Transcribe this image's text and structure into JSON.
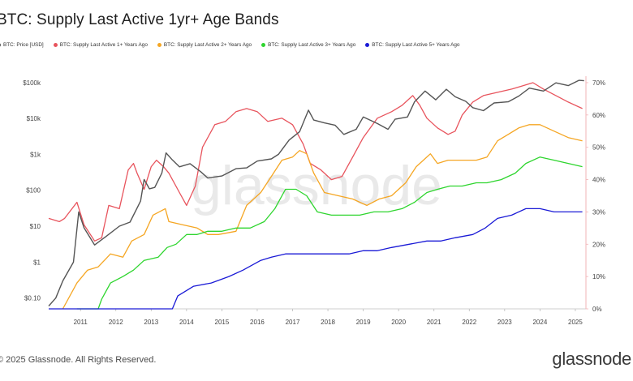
{
  "title": "BTC: Supply Last Active 1yr+ Age Bands",
  "footer": {
    "copyright": "© 2025 Glassnode. All Rights Reserved.",
    "logo": "glassnode"
  },
  "watermark": "glassnode",
  "chart_data": {
    "type": "line",
    "title": "BTC: Supply Last Active 1yr+ Age Bands",
    "x_range": [
      2010.6,
      2025.8
    ],
    "x_ticks": [
      "2011",
      "2012",
      "2013",
      "2014",
      "2015",
      "2016",
      "2017",
      "2018",
      "2019",
      "2020",
      "2021",
      "2022",
      "2023",
      "2024",
      "2025"
    ],
    "y_left": {
      "scale": "log",
      "range": [
        0.05,
        150000
      ],
      "tick_labels": [
        "$0.10",
        "$1",
        "$10",
        "$100",
        "$1k",
        "$10k",
        "$100k"
      ],
      "tick_values": [
        0.1,
        1,
        10,
        100,
        1000,
        10000,
        100000
      ]
    },
    "y_right": {
      "scale": "linear",
      "range": [
        0,
        72
      ],
      "tick_labels": [
        "0%",
        "10%",
        "20%",
        "30%",
        "40%",
        "50%",
        "60%",
        "70%"
      ],
      "tick_values": [
        0,
        10,
        20,
        30,
        40,
        50,
        60,
        70
      ]
    },
    "grid": false,
    "legend_position": "top-left",
    "series": [
      {
        "name": "BTC: Price [USD]",
        "color": "#555555",
        "axis": "left",
        "points": [
          [
            2010.6,
            0.06
          ],
          [
            2010.8,
            0.1
          ],
          [
            2011.0,
            0.3
          ],
          [
            2011.3,
            1
          ],
          [
            2011.45,
            25
          ],
          [
            2011.6,
            9
          ],
          [
            2011.9,
            3
          ],
          [
            2012.2,
            5
          ],
          [
            2012.6,
            10
          ],
          [
            2012.9,
            13
          ],
          [
            2013.2,
            50
          ],
          [
            2013.3,
            200
          ],
          [
            2013.45,
            110
          ],
          [
            2013.6,
            120
          ],
          [
            2013.8,
            300
          ],
          [
            2013.92,
            1100
          ],
          [
            2014.1,
            700
          ],
          [
            2014.3,
            450
          ],
          [
            2014.6,
            550
          ],
          [
            2014.9,
            330
          ],
          [
            2015.1,
            220
          ],
          [
            2015.5,
            250
          ],
          [
            2015.9,
            400
          ],
          [
            2016.2,
            420
          ],
          [
            2016.5,
            650
          ],
          [
            2016.9,
            750
          ],
          [
            2017.1,
            1000
          ],
          [
            2017.4,
            2500
          ],
          [
            2017.7,
            4300
          ],
          [
            2017.95,
            17000
          ],
          [
            2018.1,
            9000
          ],
          [
            2018.4,
            7500
          ],
          [
            2018.7,
            6500
          ],
          [
            2018.95,
            3600
          ],
          [
            2019.3,
            5000
          ],
          [
            2019.5,
            11000
          ],
          [
            2019.9,
            7200
          ],
          [
            2020.2,
            5000
          ],
          [
            2020.4,
            9500
          ],
          [
            2020.75,
            11000
          ],
          [
            2020.95,
            29000
          ],
          [
            2021.25,
            58000
          ],
          [
            2021.55,
            33000
          ],
          [
            2021.85,
            65000
          ],
          [
            2022.1,
            40000
          ],
          [
            2022.4,
            30000
          ],
          [
            2022.6,
            20000
          ],
          [
            2022.9,
            16500
          ],
          [
            2023.2,
            27000
          ],
          [
            2023.6,
            29000
          ],
          [
            2023.9,
            42000
          ],
          [
            2024.2,
            70000
          ],
          [
            2024.6,
            58000
          ],
          [
            2024.95,
            98000
          ],
          [
            2025.3,
            82000
          ],
          [
            2025.6,
            115000
          ],
          [
            2025.75,
            112000
          ]
        ]
      },
      {
        "name": "BTC: Supply Last Active 1+ Years Ago",
        "color": "#e8545d",
        "axis": "right",
        "points": [
          [
            2010.6,
            28
          ],
          [
            2010.9,
            27
          ],
          [
            2011.05,
            28
          ],
          [
            2011.4,
            33
          ],
          [
            2011.6,
            26
          ],
          [
            2011.9,
            21
          ],
          [
            2012.1,
            22
          ],
          [
            2012.3,
            32
          ],
          [
            2012.6,
            31
          ],
          [
            2012.85,
            43
          ],
          [
            2013.0,
            45
          ],
          [
            2013.1,
            42
          ],
          [
            2013.3,
            37
          ],
          [
            2013.5,
            44
          ],
          [
            2013.65,
            46
          ],
          [
            2013.85,
            44
          ],
          [
            2014.0,
            42
          ],
          [
            2014.3,
            36
          ],
          [
            2014.5,
            32
          ],
          [
            2014.75,
            38
          ],
          [
            2014.95,
            50
          ],
          [
            2015.3,
            57
          ],
          [
            2015.6,
            58
          ],
          [
            2015.9,
            61
          ],
          [
            2016.2,
            62
          ],
          [
            2016.5,
            61
          ],
          [
            2016.8,
            58
          ],
          [
            2017.2,
            59
          ],
          [
            2017.5,
            57
          ],
          [
            2017.8,
            51
          ],
          [
            2018.0,
            45
          ],
          [
            2018.3,
            43
          ],
          [
            2018.6,
            40
          ],
          [
            2018.9,
            41
          ],
          [
            2019.2,
            47
          ],
          [
            2019.5,
            53
          ],
          [
            2019.9,
            59
          ],
          [
            2020.3,
            61
          ],
          [
            2020.6,
            63
          ],
          [
            2020.9,
            66
          ],
          [
            2021.1,
            63
          ],
          [
            2021.3,
            59
          ],
          [
            2021.6,
            56
          ],
          [
            2021.9,
            54
          ],
          [
            2022.1,
            55
          ],
          [
            2022.3,
            60
          ],
          [
            2022.6,
            64
          ],
          [
            2022.9,
            66
          ],
          [
            2023.3,
            67
          ],
          [
            2023.7,
            68
          ],
          [
            2024.0,
            69
          ],
          [
            2024.3,
            70
          ],
          [
            2024.6,
            68
          ],
          [
            2024.95,
            66
          ],
          [
            2025.3,
            64
          ],
          [
            2025.7,
            62
          ]
        ]
      },
      {
        "name": "BTC: Supply Last Active 2+ Years Ago",
        "color": "#f5a623",
        "axis": "right",
        "points": [
          [
            2011.0,
            0
          ],
          [
            2011.4,
            8
          ],
          [
            2011.7,
            12
          ],
          [
            2012.0,
            13
          ],
          [
            2012.35,
            17
          ],
          [
            2012.7,
            16
          ],
          [
            2012.95,
            21
          ],
          [
            2013.3,
            23
          ],
          [
            2013.55,
            29
          ],
          [
            2013.9,
            31
          ],
          [
            2014.0,
            27
          ],
          [
            2014.4,
            26
          ],
          [
            2014.8,
            25
          ],
          [
            2015.1,
            23
          ],
          [
            2015.4,
            23
          ],
          [
            2015.9,
            24
          ],
          [
            2016.2,
            32
          ],
          [
            2016.6,
            36
          ],
          [
            2016.9,
            41
          ],
          [
            2017.2,
            46
          ],
          [
            2017.5,
            47
          ],
          [
            2017.7,
            49
          ],
          [
            2017.9,
            48
          ],
          [
            2018.1,
            42
          ],
          [
            2018.4,
            36
          ],
          [
            2018.8,
            35
          ],
          [
            2019.2,
            34
          ],
          [
            2019.6,
            32
          ],
          [
            2019.95,
            34
          ],
          [
            2020.3,
            35
          ],
          [
            2020.7,
            39
          ],
          [
            2021.0,
            44
          ],
          [
            2021.2,
            46
          ],
          [
            2021.4,
            48
          ],
          [
            2021.6,
            45
          ],
          [
            2021.9,
            46
          ],
          [
            2022.3,
            46
          ],
          [
            2022.7,
            46
          ],
          [
            2023.0,
            47
          ],
          [
            2023.3,
            52
          ],
          [
            2023.6,
            54
          ],
          [
            2023.9,
            56
          ],
          [
            2024.2,
            57
          ],
          [
            2024.5,
            57
          ],
          [
            2024.9,
            55
          ],
          [
            2025.3,
            53
          ],
          [
            2025.7,
            52
          ]
        ]
      },
      {
        "name": "BTC: Supply Last Active 3+ Years Ago",
        "color": "#2ed52e",
        "axis": "right",
        "points": [
          [
            2011.4,
            0
          ],
          [
            2012.0,
            0
          ],
          [
            2012.1,
            3
          ],
          [
            2012.35,
            8
          ],
          [
            2012.7,
            10
          ],
          [
            2013.0,
            12
          ],
          [
            2013.3,
            15
          ],
          [
            2013.7,
            16
          ],
          [
            2013.95,
            19
          ],
          [
            2014.2,
            20
          ],
          [
            2014.5,
            23
          ],
          [
            2014.8,
            23
          ],
          [
            2015.1,
            24
          ],
          [
            2015.5,
            24
          ],
          [
            2015.9,
            25
          ],
          [
            2016.3,
            25
          ],
          [
            2016.7,
            27
          ],
          [
            2017.0,
            31
          ],
          [
            2017.3,
            37
          ],
          [
            2017.6,
            37
          ],
          [
            2017.9,
            35
          ],
          [
            2018.2,
            30
          ],
          [
            2018.6,
            29
          ],
          [
            2019.0,
            29
          ],
          [
            2019.4,
            29
          ],
          [
            2019.8,
            30
          ],
          [
            2020.2,
            30
          ],
          [
            2020.6,
            31
          ],
          [
            2020.95,
            33
          ],
          [
            2021.3,
            36
          ],
          [
            2021.6,
            37
          ],
          [
            2021.95,
            38
          ],
          [
            2022.3,
            38
          ],
          [
            2022.7,
            39
          ],
          [
            2023.0,
            39
          ],
          [
            2023.4,
            40
          ],
          [
            2023.8,
            42
          ],
          [
            2024.1,
            45
          ],
          [
            2024.5,
            47
          ],
          [
            2024.9,
            46
          ],
          [
            2025.3,
            45
          ],
          [
            2025.7,
            44
          ]
        ]
      },
      {
        "name": "BTC: Supply Last Active 5+ Years Ago",
        "color": "#1a1ad6",
        "axis": "right",
        "points": [
          [
            2010.6,
            0
          ],
          [
            2014.1,
            0
          ],
          [
            2014.25,
            4
          ],
          [
            2014.7,
            7
          ],
          [
            2015.2,
            8
          ],
          [
            2015.7,
            10
          ],
          [
            2016.1,
            12
          ],
          [
            2016.6,
            15
          ],
          [
            2016.9,
            16
          ],
          [
            2017.3,
            17
          ],
          [
            2017.8,
            17
          ],
          [
            2018.3,
            17
          ],
          [
            2018.8,
            17
          ],
          [
            2019.1,
            17
          ],
          [
            2019.5,
            18
          ],
          [
            2019.9,
            18
          ],
          [
            2020.3,
            19
          ],
          [
            2020.8,
            20
          ],
          [
            2021.3,
            21
          ],
          [
            2021.7,
            21
          ],
          [
            2022.1,
            22
          ],
          [
            2022.6,
            23
          ],
          [
            2022.95,
            25
          ],
          [
            2023.3,
            28
          ],
          [
            2023.7,
            29
          ],
          [
            2024.1,
            31
          ],
          [
            2024.5,
            31
          ],
          [
            2024.9,
            30
          ],
          [
            2025.3,
            30
          ],
          [
            2025.7,
            30
          ]
        ]
      }
    ]
  }
}
